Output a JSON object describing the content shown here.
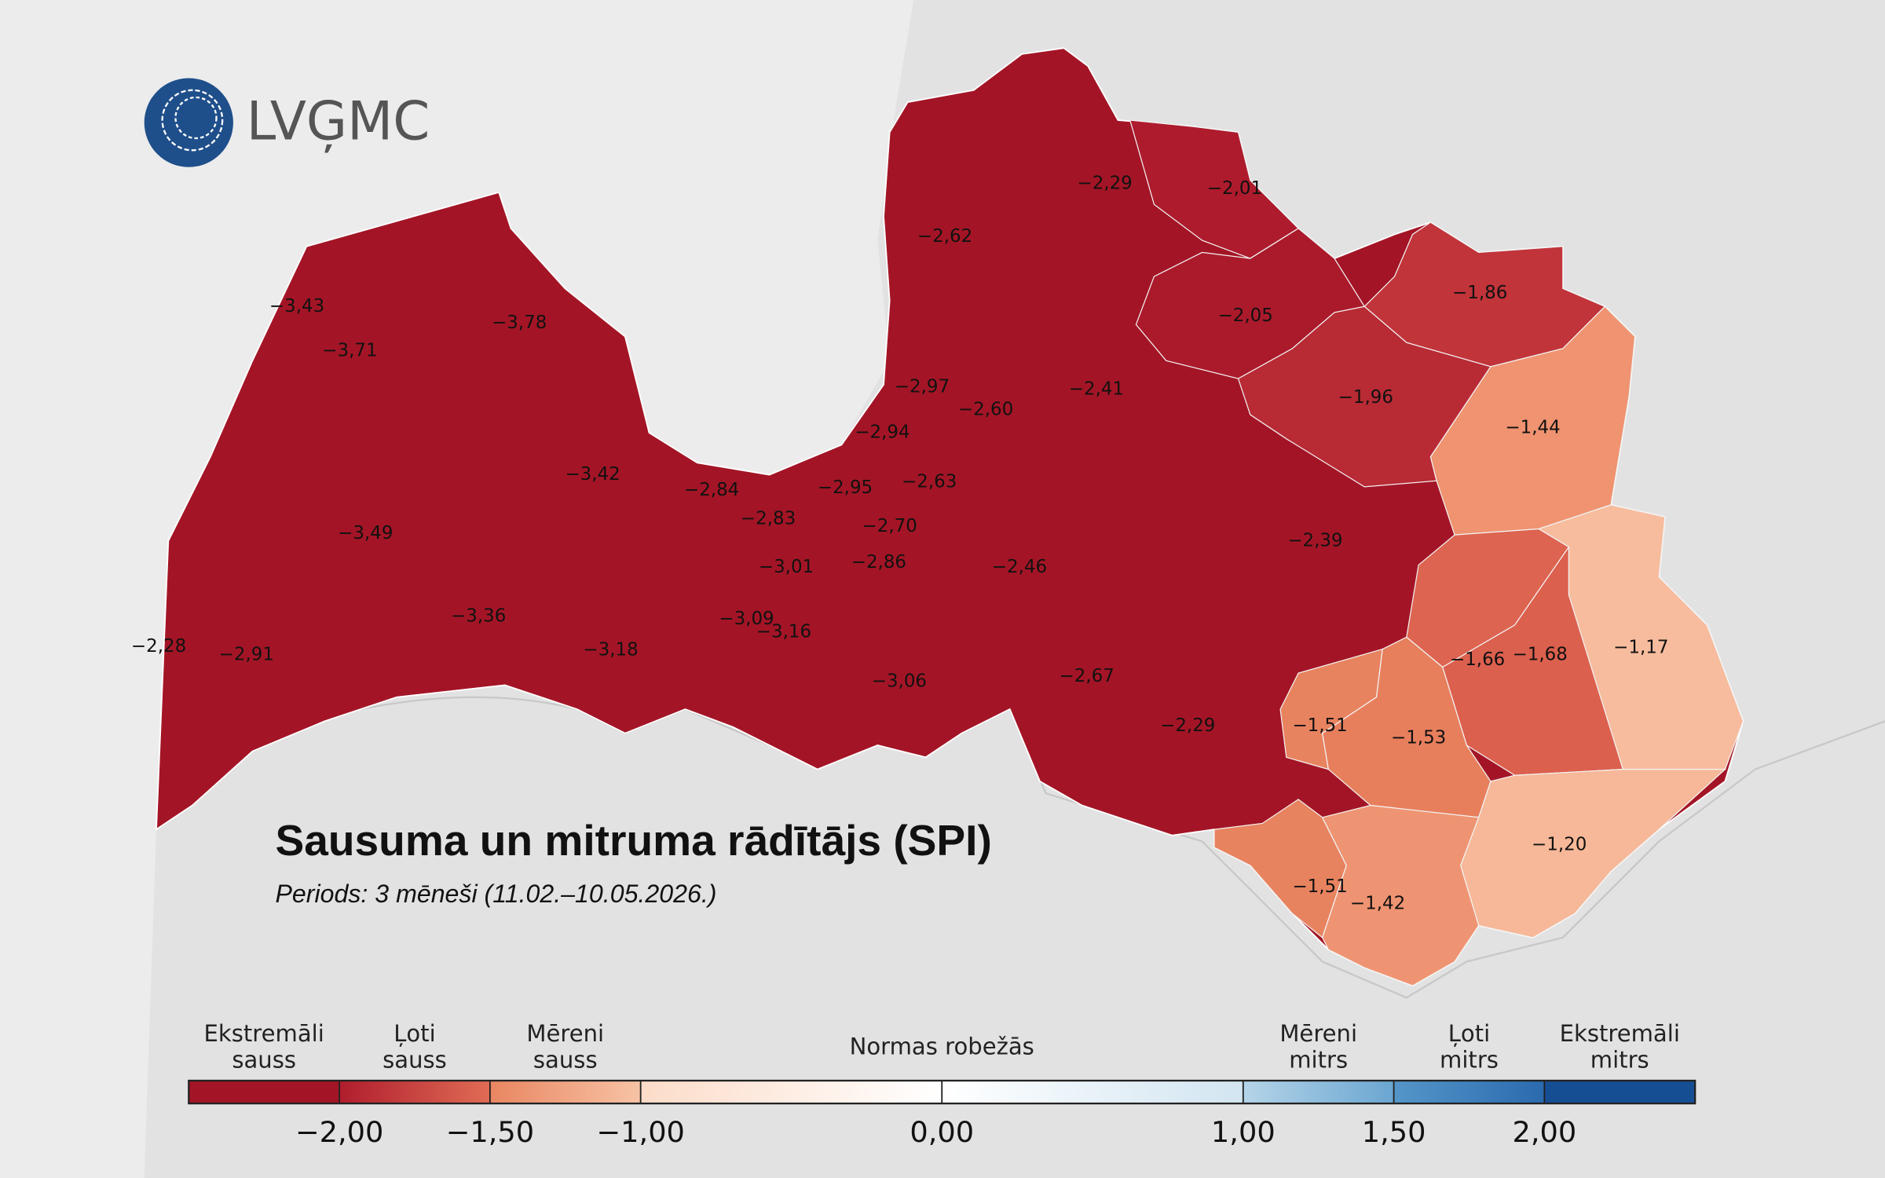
{
  "header": {
    "logo": "LVĢMC",
    "title": "Sausuma un mitruma rādītājs (SPI)",
    "subtitle": "Periods: 3 mēneši (11.02.–10.05.2026.)"
  },
  "map": {
    "regions": [
      {
        "label": "−3,43",
        "color": "#a31526"
      },
      {
        "label": "−3,71",
        "color": "#a31526"
      },
      {
        "label": "−3,78",
        "color": "#a31526"
      },
      {
        "label": "−3,42",
        "color": "#a31526"
      },
      {
        "label": "−3,49",
        "color": "#a31526"
      },
      {
        "label": "−3,36",
        "color": "#a31526"
      },
      {
        "label": "−3,18",
        "color": "#a31526"
      },
      {
        "label": "−2,28",
        "color": "#a31526"
      },
      {
        "label": "−2,91",
        "color": "#a31526"
      },
      {
        "label": "−2,84",
        "color": "#a31526"
      },
      {
        "label": "−2,83",
        "color": "#a31526"
      },
      {
        "label": "−3,01",
        "color": "#a31526"
      },
      {
        "label": "−3,09",
        "color": "#a31526"
      },
      {
        "label": "−3,16",
        "color": "#a31526"
      },
      {
        "label": "−2,95",
        "color": "#a31526"
      },
      {
        "label": "−2,94",
        "color": "#a31526"
      },
      {
        "label": "−2,97",
        "color": "#a31526"
      },
      {
        "label": "−2,60",
        "color": "#a31526"
      },
      {
        "label": "−2,63",
        "color": "#a31526"
      },
      {
        "label": "−2,70",
        "color": "#a31526"
      },
      {
        "label": "−2,86",
        "color": "#a31526"
      },
      {
        "label": "−3,06",
        "color": "#a31526"
      },
      {
        "label": "−2,46",
        "color": "#a31526"
      },
      {
        "label": "−2,62",
        "color": "#a31526"
      },
      {
        "label": "−2,29",
        "color": "#a31526"
      },
      {
        "label": "−2,01",
        "color": "#ad1b2c"
      },
      {
        "label": "−2,05",
        "color": "#ab1a2b"
      },
      {
        "label": "−2,41",
        "color": "#a31526"
      },
      {
        "label": "−2,39",
        "color": "#a31526"
      },
      {
        "label": "−2,67",
        "color": "#a31526"
      },
      {
        "label": "−2,29",
        "color": "#a31526"
      },
      {
        "label": "−1,86",
        "color": "#c1343a"
      },
      {
        "label": "−1,96",
        "color": "#b82a34"
      },
      {
        "label": "−1,44",
        "color": "#ef9370"
      },
      {
        "label": "−1,66",
        "color": "#dd6450"
      },
      {
        "label": "−1,68",
        "color": "#dc604e"
      },
      {
        "label": "−1,17",
        "color": "#f7bc9e"
      },
      {
        "label": "−1,51",
        "color": "#e8835f"
      },
      {
        "label": "−1,53",
        "color": "#e77f5d"
      },
      {
        "label": "−1,20",
        "color": "#f6b898"
      },
      {
        "label": "−1,51",
        "color": "#e8835f"
      },
      {
        "label": "−1,42",
        "color": "#ef9472"
      }
    ]
  },
  "legend": {
    "xlim": [
      -2.5,
      2.5
    ],
    "ticks": [
      {
        "value": -2,
        "label": "−2,00"
      },
      {
        "value": -1.5,
        "label": "−1,50"
      },
      {
        "value": -1,
        "label": "−1,00"
      },
      {
        "value": 0,
        "label": "0,00"
      },
      {
        "value": 1,
        "label": "1,00"
      },
      {
        "value": 1.5,
        "label": "1,50"
      },
      {
        "value": 2,
        "label": "2,00"
      }
    ],
    "classes": [
      {
        "lines": [
          "Ekstremāli",
          "sauss"
        ],
        "range": [
          -2.5,
          -2
        ],
        "colors": [
          "#a31526",
          "#a31526"
        ]
      },
      {
        "lines": [
          "Ļoti",
          "sauss"
        ],
        "range": [
          -2,
          -1.5
        ],
        "colors": [
          "#b01d2d",
          "#e06c55"
        ]
      },
      {
        "lines": [
          "Mēreni",
          "sauss"
        ],
        "range": [
          -1.5,
          -1
        ],
        "colors": [
          "#e98661",
          "#f7c3a5"
        ]
      },
      {
        "lines": [
          "Normas robežās"
        ],
        "range": [
          -1,
          1
        ],
        "colors": [
          "#fcdcc9",
          "#ffffff",
          "#d2e5f1"
        ]
      },
      {
        "lines": [
          "Mēreni",
          "mitrs"
        ],
        "range": [
          1,
          1.5
        ],
        "colors": [
          "#b5d4e8",
          "#6aa6d1"
        ]
      },
      {
        "lines": [
          "Ļoti",
          "mitrs"
        ],
        "range": [
          1.5,
          2
        ],
        "colors": [
          "#5596c9",
          "#2a6aae"
        ]
      },
      {
        "lines": [
          "Ekstremāli",
          "mitrs"
        ],
        "range": [
          2,
          2.5
        ],
        "colors": [
          "#164e93",
          "#164e93"
        ]
      }
    ]
  }
}
